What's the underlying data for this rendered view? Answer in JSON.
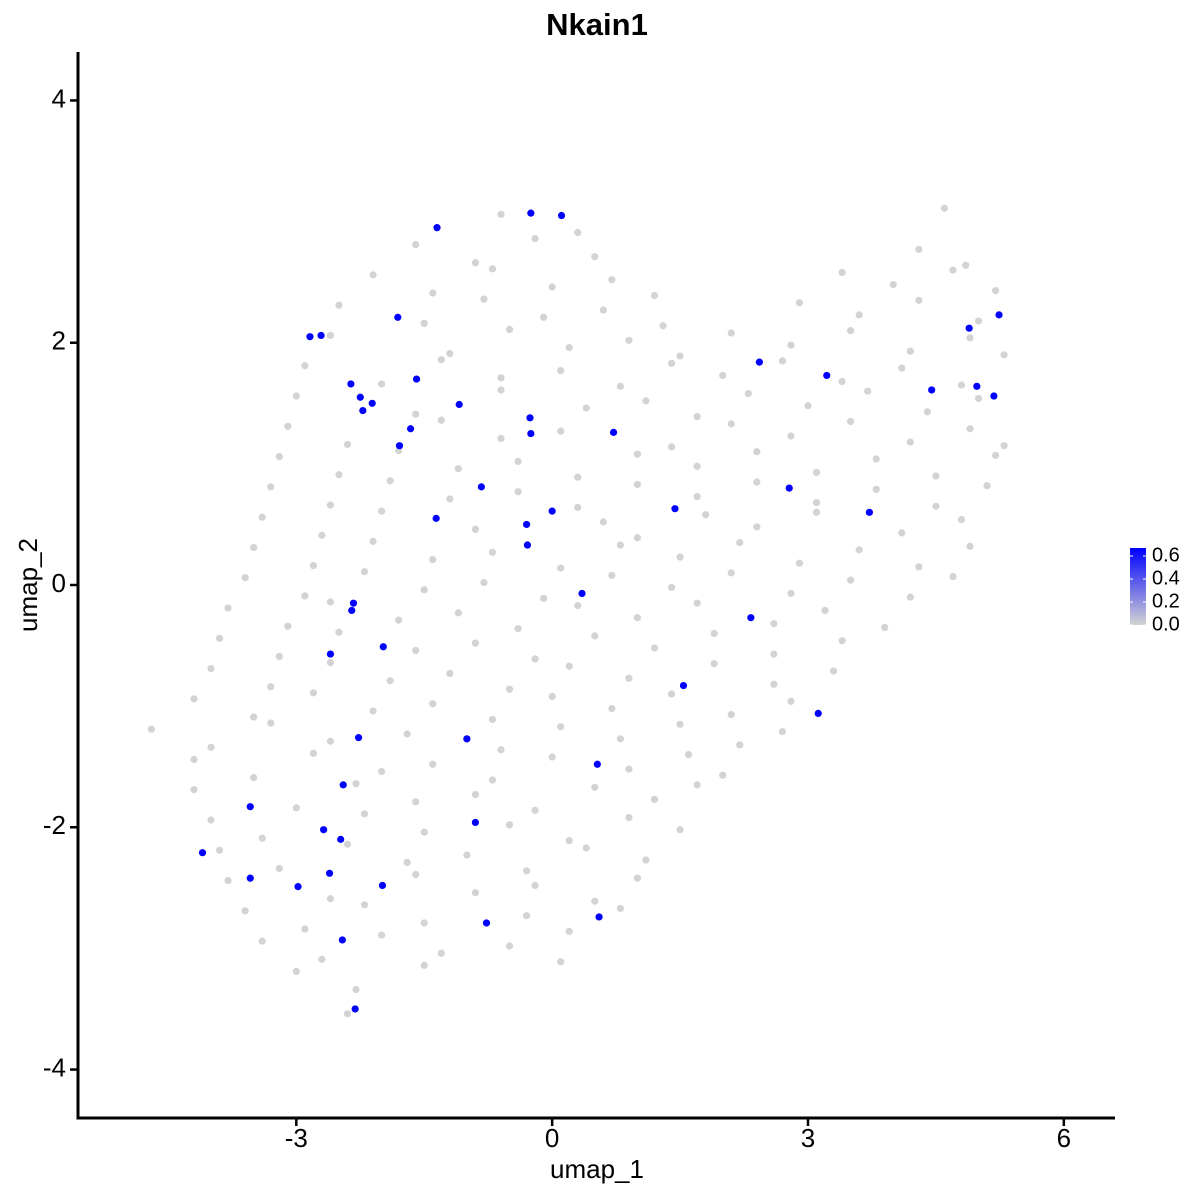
{
  "chart_data": {
    "type": "scatter",
    "title": "Nkain1",
    "xlabel": "umap_1",
    "ylabel": "umap_2",
    "xlim": [
      -5.56,
      6.6
    ],
    "ylim": [
      -4.4,
      4.4
    ],
    "xticks": [
      -3,
      0,
      3,
      6
    ],
    "yticks": [
      -4,
      -2,
      0,
      2,
      4
    ],
    "grid": false,
    "color_low": "#d3d3d3",
    "color_high": "#0000ff",
    "clim": [
      0,
      0.67
    ],
    "cticks": [
      {
        "value": 0,
        "label": "0.0"
      },
      0.2,
      0.4,
      0.6
    ],
    "legend": "right",
    "x": [
      -0.6,
      0.3,
      4.6,
      -1.6,
      -0.9,
      -0.2,
      0.5,
      4.3,
      4.85,
      -2.1,
      -1.4,
      -0.7,
      0.0,
      0.7,
      1.2,
      3.4,
      4.0,
      4.7,
      5.2,
      -2.5,
      -1.5,
      -0.8,
      -0.1,
      0.6,
      1.3,
      2.9,
      3.6,
      4.3,
      5.0,
      -2.6,
      -1.2,
      -0.5,
      0.2,
      0.9,
      1.5,
      2.1,
      2.8,
      3.5,
      4.2,
      4.9,
      5.3,
      -2.9,
      -2.0,
      -1.3,
      -0.6,
      0.1,
      0.8,
      1.4,
      2.0,
      2.7,
      3.4,
      4.1,
      4.8,
      -3.0,
      -1.6,
      -0.6,
      0.4,
      1.1,
      1.7,
      2.3,
      3.0,
      3.7,
      4.4,
      5.0,
      -3.1,
      -2.4,
      -1.3,
      -0.6,
      0.1,
      1.4,
      2.1,
      2.8,
      3.5,
      4.2,
      4.9,
      5.3,
      -3.2,
      -2.5,
      -1.8,
      -1.1,
      -0.4,
      0.3,
      1.0,
      1.7,
      2.4,
      3.1,
      3.8,
      4.5,
      5.2,
      -3.3,
      -2.6,
      -1.9,
      -1.2,
      -0.4,
      0.3,
      1.0,
      1.7,
      2.4,
      3.1,
      3.8,
      4.5,
      5.1,
      -3.4,
      -2.7,
      -2.0,
      -0.9,
      0.6,
      1.0,
      1.8,
      2.4,
      3.1,
      4.1,
      4.8,
      -3.5,
      -2.8,
      -2.1,
      -1.4,
      -0.7,
      0.1,
      0.8,
      1.5,
      2.2,
      2.9,
      3.6,
      4.3,
      4.9,
      -3.6,
      -2.9,
      -2.2,
      -1.5,
      -0.8,
      -0.1,
      0.7,
      1.4,
      2.1,
      2.8,
      3.5,
      4.2,
      4.7,
      -3.8,
      -3.1,
      -2.6,
      -1.8,
      -1.1,
      -0.4,
      0.3,
      1.0,
      1.7,
      2.6,
      3.2,
      3.9,
      -3.9,
      -3.2,
      -2.5,
      -1.6,
      -0.9,
      -0.2,
      0.5,
      1.2,
      1.9,
      2.6,
      3.4,
      -4.0,
      -3.3,
      -2.6,
      -1.9,
      -1.2,
      -0.5,
      0.2,
      0.9,
      1.9,
      2.6,
      3.3,
      -4.2,
      -3.5,
      -2.8,
      -2.1,
      -1.4,
      -0.7,
      0.0,
      0.7,
      1.4,
      2.1,
      2.8,
      -4.7,
      -4.0,
      -3.3,
      -2.6,
      -1.7,
      -0.6,
      0.1,
      0.8,
      1.5,
      2.2,
      2.7,
      -4.2,
      -3.5,
      -2.8,
      -2.0,
      -1.4,
      -0.7,
      0.0,
      0.9,
      1.6,
      2.0,
      -4.2,
      -3.0,
      -2.3,
      -1.6,
      -0.9,
      -0.2,
      0.5,
      1.2,
      1.7,
      -4.0,
      -3.4,
      -2.2,
      -1.5,
      -0.5,
      0.2,
      0.9,
      1.5,
      -3.9,
      -3.2,
      -2.4,
      -1.7,
      -1.0,
      -0.3,
      0.4,
      1.1,
      -3.8,
      -2.6,
      -1.6,
      -0.9,
      -0.2,
      0.5,
      1.0,
      -3.6,
      -2.9,
      -2.2,
      -1.5,
      -0.3,
      0.2,
      0.8,
      -3.4,
      -2.7,
      -2.0,
      -1.3,
      -0.5,
      0.1,
      -3.0,
      -2.3,
      -1.5,
      -2.4,
      -0.25,
      0.11,
      -1.35,
      -1.81,
      -2.84,
      -2.71,
      -1.59,
      -2.36,
      -2.25,
      -2.11,
      -2.22,
      -1.09,
      -0.26,
      -0.25,
      -1.66,
      -1.79,
      0.72,
      2.43,
      3.22,
      4.89,
      5.24,
      4.45,
      4.98,
      5.18,
      -0.83,
      0.0,
      -0.3,
      -0.29,
      -1.36,
      1.44,
      2.78,
      3.72,
      0.35,
      -2.33,
      -2.35,
      -1.98,
      -2.6,
      2.33,
      1.54,
      3.12,
      -2.27,
      -1.0,
      -2.45,
      -3.54,
      0.53,
      -0.9,
      -2.68,
      -2.48,
      -4.1,
      -2.61,
      -3.54,
      -1.99,
      -2.98,
      0.55,
      -0.77,
      -2.46,
      -2.31
    ],
    "y": [
      3.06,
      2.91,
      3.11,
      2.81,
      2.66,
      2.86,
      2.71,
      2.77,
      2.64,
      2.56,
      2.41,
      2.61,
      2.46,
      2.52,
      2.39,
      2.58,
      2.48,
      2.6,
      2.43,
      2.31,
      2.16,
      2.36,
      2.21,
      2.27,
      2.14,
      2.33,
      2.23,
      2.35,
      2.18,
      2.06,
      1.91,
      2.11,
      1.96,
      2.02,
      1.89,
      2.08,
      1.98,
      2.1,
      1.93,
      2.04,
      1.9,
      1.81,
      1.66,
      1.86,
      1.71,
      1.77,
      1.64,
      1.83,
      1.73,
      1.85,
      1.68,
      1.79,
      1.65,
      1.56,
      1.41,
      1.61,
      1.46,
      1.52,
      1.39,
      1.58,
      1.48,
      1.6,
      1.43,
      1.54,
      1.31,
      1.16,
      1.36,
      1.21,
      1.27,
      1.14,
      1.33,
      1.23,
      1.35,
      1.18,
      1.29,
      1.15,
      1.06,
      0.91,
      1.11,
      0.96,
      1.02,
      0.89,
      1.08,
      0.98,
      1.1,
      0.93,
      1.04,
      0.9,
      1.07,
      0.81,
      0.66,
      0.86,
      0.71,
      0.77,
      0.64,
      0.83,
      0.73,
      0.85,
      0.68,
      0.79,
      0.65,
      0.82,
      0.56,
      0.41,
      0.61,
      0.46,
      0.52,
      0.39,
      0.58,
      0.48,
      0.6,
      0.43,
      0.54,
      0.31,
      0.16,
      0.36,
      0.21,
      0.27,
      0.14,
      0.33,
      0.23,
      0.35,
      0.18,
      0.29,
      0.15,
      0.32,
      0.06,
      -0.09,
      0.11,
      -0.04,
      0.02,
      -0.11,
      0.08,
      -0.02,
      0.1,
      -0.07,
      0.04,
      -0.1,
      0.07,
      -0.19,
      -0.34,
      -0.14,
      -0.29,
      -0.23,
      -0.36,
      -0.17,
      -0.27,
      -0.15,
      -0.32,
      -0.21,
      -0.35,
      -0.44,
      -0.59,
      -0.39,
      -0.54,
      -0.48,
      -0.61,
      -0.42,
      -0.52,
      -0.4,
      -0.57,
      -0.46,
      -0.69,
      -0.84,
      -0.64,
      -0.79,
      -0.73,
      -0.86,
      -0.67,
      -0.77,
      -0.65,
      -0.82,
      -0.71,
      -0.94,
      -1.09,
      -0.89,
      -1.04,
      -0.98,
      -1.11,
      -0.92,
      -1.02,
      -0.9,
      -1.07,
      -0.96,
      -1.19,
      -1.34,
      -1.14,
      -1.29,
      -1.23,
      -1.36,
      -1.17,
      -1.27,
      -1.15,
      -1.32,
      -1.21,
      -1.44,
      -1.59,
      -1.39,
      -1.54,
      -1.48,
      -1.61,
      -1.42,
      -1.52,
      -1.4,
      -1.57,
      -1.69,
      -1.84,
      -1.64,
      -1.79,
      -1.73,
      -1.86,
      -1.67,
      -1.77,
      -1.65,
      -1.94,
      -2.09,
      -1.89,
      -2.04,
      -1.98,
      -2.11,
      -1.92,
      -2.02,
      -2.19,
      -2.34,
      -2.14,
      -2.29,
      -2.23,
      -2.36,
      -2.17,
      -2.27,
      -2.44,
      -2.59,
      -2.39,
      -2.54,
      -2.48,
      -2.61,
      -2.42,
      -2.69,
      -2.84,
      -2.64,
      -2.79,
      -2.73,
      -2.86,
      -2.67,
      -2.94,
      -3.09,
      -2.89,
      -3.04,
      -2.98,
      -3.11,
      -3.19,
      -3.34,
      -3.14,
      -3.54,
      3.07,
      3.05,
      2.95,
      2.21,
      2.05,
      2.06,
      1.7,
      1.66,
      1.55,
      1.5,
      1.44,
      1.49,
      1.38,
      1.25,
      1.29,
      1.15,
      1.26,
      1.84,
      1.73,
      2.12,
      2.23,
      1.61,
      1.64,
      1.56,
      0.81,
      0.61,
      0.5,
      0.33,
      0.55,
      0.63,
      0.8,
      0.6,
      -0.07,
      -0.15,
      -0.21,
      -0.51,
      -0.57,
      -0.27,
      -0.83,
      -1.06,
      -1.26,
      -1.27,
      -1.65,
      -1.83,
      -1.48,
      -1.96,
      -2.02,
      -2.1,
      -2.21,
      -2.38,
      -2.42,
      -2.48,
      -2.49,
      -2.74,
      -2.79,
      -2.93,
      -3.5
    ],
    "values": [
      0,
      0,
      0,
      0,
      0,
      0,
      0,
      0,
      0,
      0,
      0,
      0,
      0,
      0,
      0,
      0,
      0,
      0,
      0,
      0,
      0,
      0,
      0,
      0,
      0,
      0,
      0,
      0,
      0,
      0,
      0,
      0,
      0,
      0,
      0,
      0,
      0,
      0,
      0,
      0,
      0,
      0,
      0,
      0,
      0,
      0,
      0,
      0,
      0,
      0,
      0,
      0,
      0,
      0,
      0,
      0,
      0,
      0,
      0,
      0,
      0,
      0,
      0,
      0,
      0,
      0,
      0,
      0,
      0,
      0,
      0,
      0,
      0,
      0,
      0,
      0,
      0,
      0,
      0,
      0,
      0,
      0,
      0,
      0,
      0,
      0,
      0,
      0,
      0,
      0,
      0,
      0,
      0,
      0,
      0,
      0,
      0,
      0,
      0,
      0,
      0,
      0,
      0,
      0,
      0,
      0,
      0,
      0,
      0,
      0,
      0,
      0,
      0,
      0,
      0,
      0,
      0,
      0,
      0,
      0,
      0,
      0,
      0,
      0,
      0,
      0,
      0,
      0,
      0,
      0,
      0,
      0,
      0,
      0,
      0,
      0,
      0,
      0,
      0,
      0,
      0,
      0,
      0,
      0,
      0,
      0,
      0,
      0,
      0,
      0,
      0,
      0,
      0,
      0,
      0,
      0,
      0,
      0,
      0,
      0,
      0,
      0,
      0,
      0,
      0,
      0,
      0,
      0,
      0,
      0,
      0,
      0,
      0,
      0,
      0,
      0,
      0,
      0,
      0,
      0,
      0,
      0,
      0,
      0,
      0,
      0,
      0,
      0,
      0,
      0,
      0,
      0,
      0,
      0,
      0,
      0,
      0,
      0,
      0,
      0,
      0,
      0,
      0,
      0,
      0,
      0,
      0,
      0,
      0,
      0,
      0,
      0,
      0,
      0,
      0,
      0,
      0,
      0,
      0,
      0,
      0,
      0,
      0,
      0,
      0,
      0,
      0,
      0,
      0,
      0,
      0,
      0,
      0,
      0,
      0,
      0,
      0,
      0,
      0,
      0,
      0,
      0,
      0,
      0,
      0,
      0,
      0,
      0,
      0,
      0,
      0,
      0,
      0,
      0,
      0.67,
      0.67,
      0.67,
      0.67,
      0.67,
      0.67,
      0.67,
      0.67,
      0.67,
      0.67,
      0.67,
      0.67,
      0.67,
      0.67,
      0.67,
      0.67,
      0.67,
      0.67,
      0.67,
      0.67,
      0.67,
      0.67,
      0.67,
      0.67,
      0.67,
      0.67,
      0.67,
      0.67,
      0.67,
      0.67,
      0.67,
      0.67,
      0.67,
      0.67,
      0.67,
      0.67,
      0.67,
      0.67,
      0.67,
      0.67,
      0.67,
      0.67,
      0.67,
      0.67,
      0.67,
      0.67,
      0.67,
      0.67,
      0.67,
      0.67,
      0.67,
      0.67,
      0.67,
      0.67,
      0.67,
      0.67,
      0.67
    ]
  }
}
